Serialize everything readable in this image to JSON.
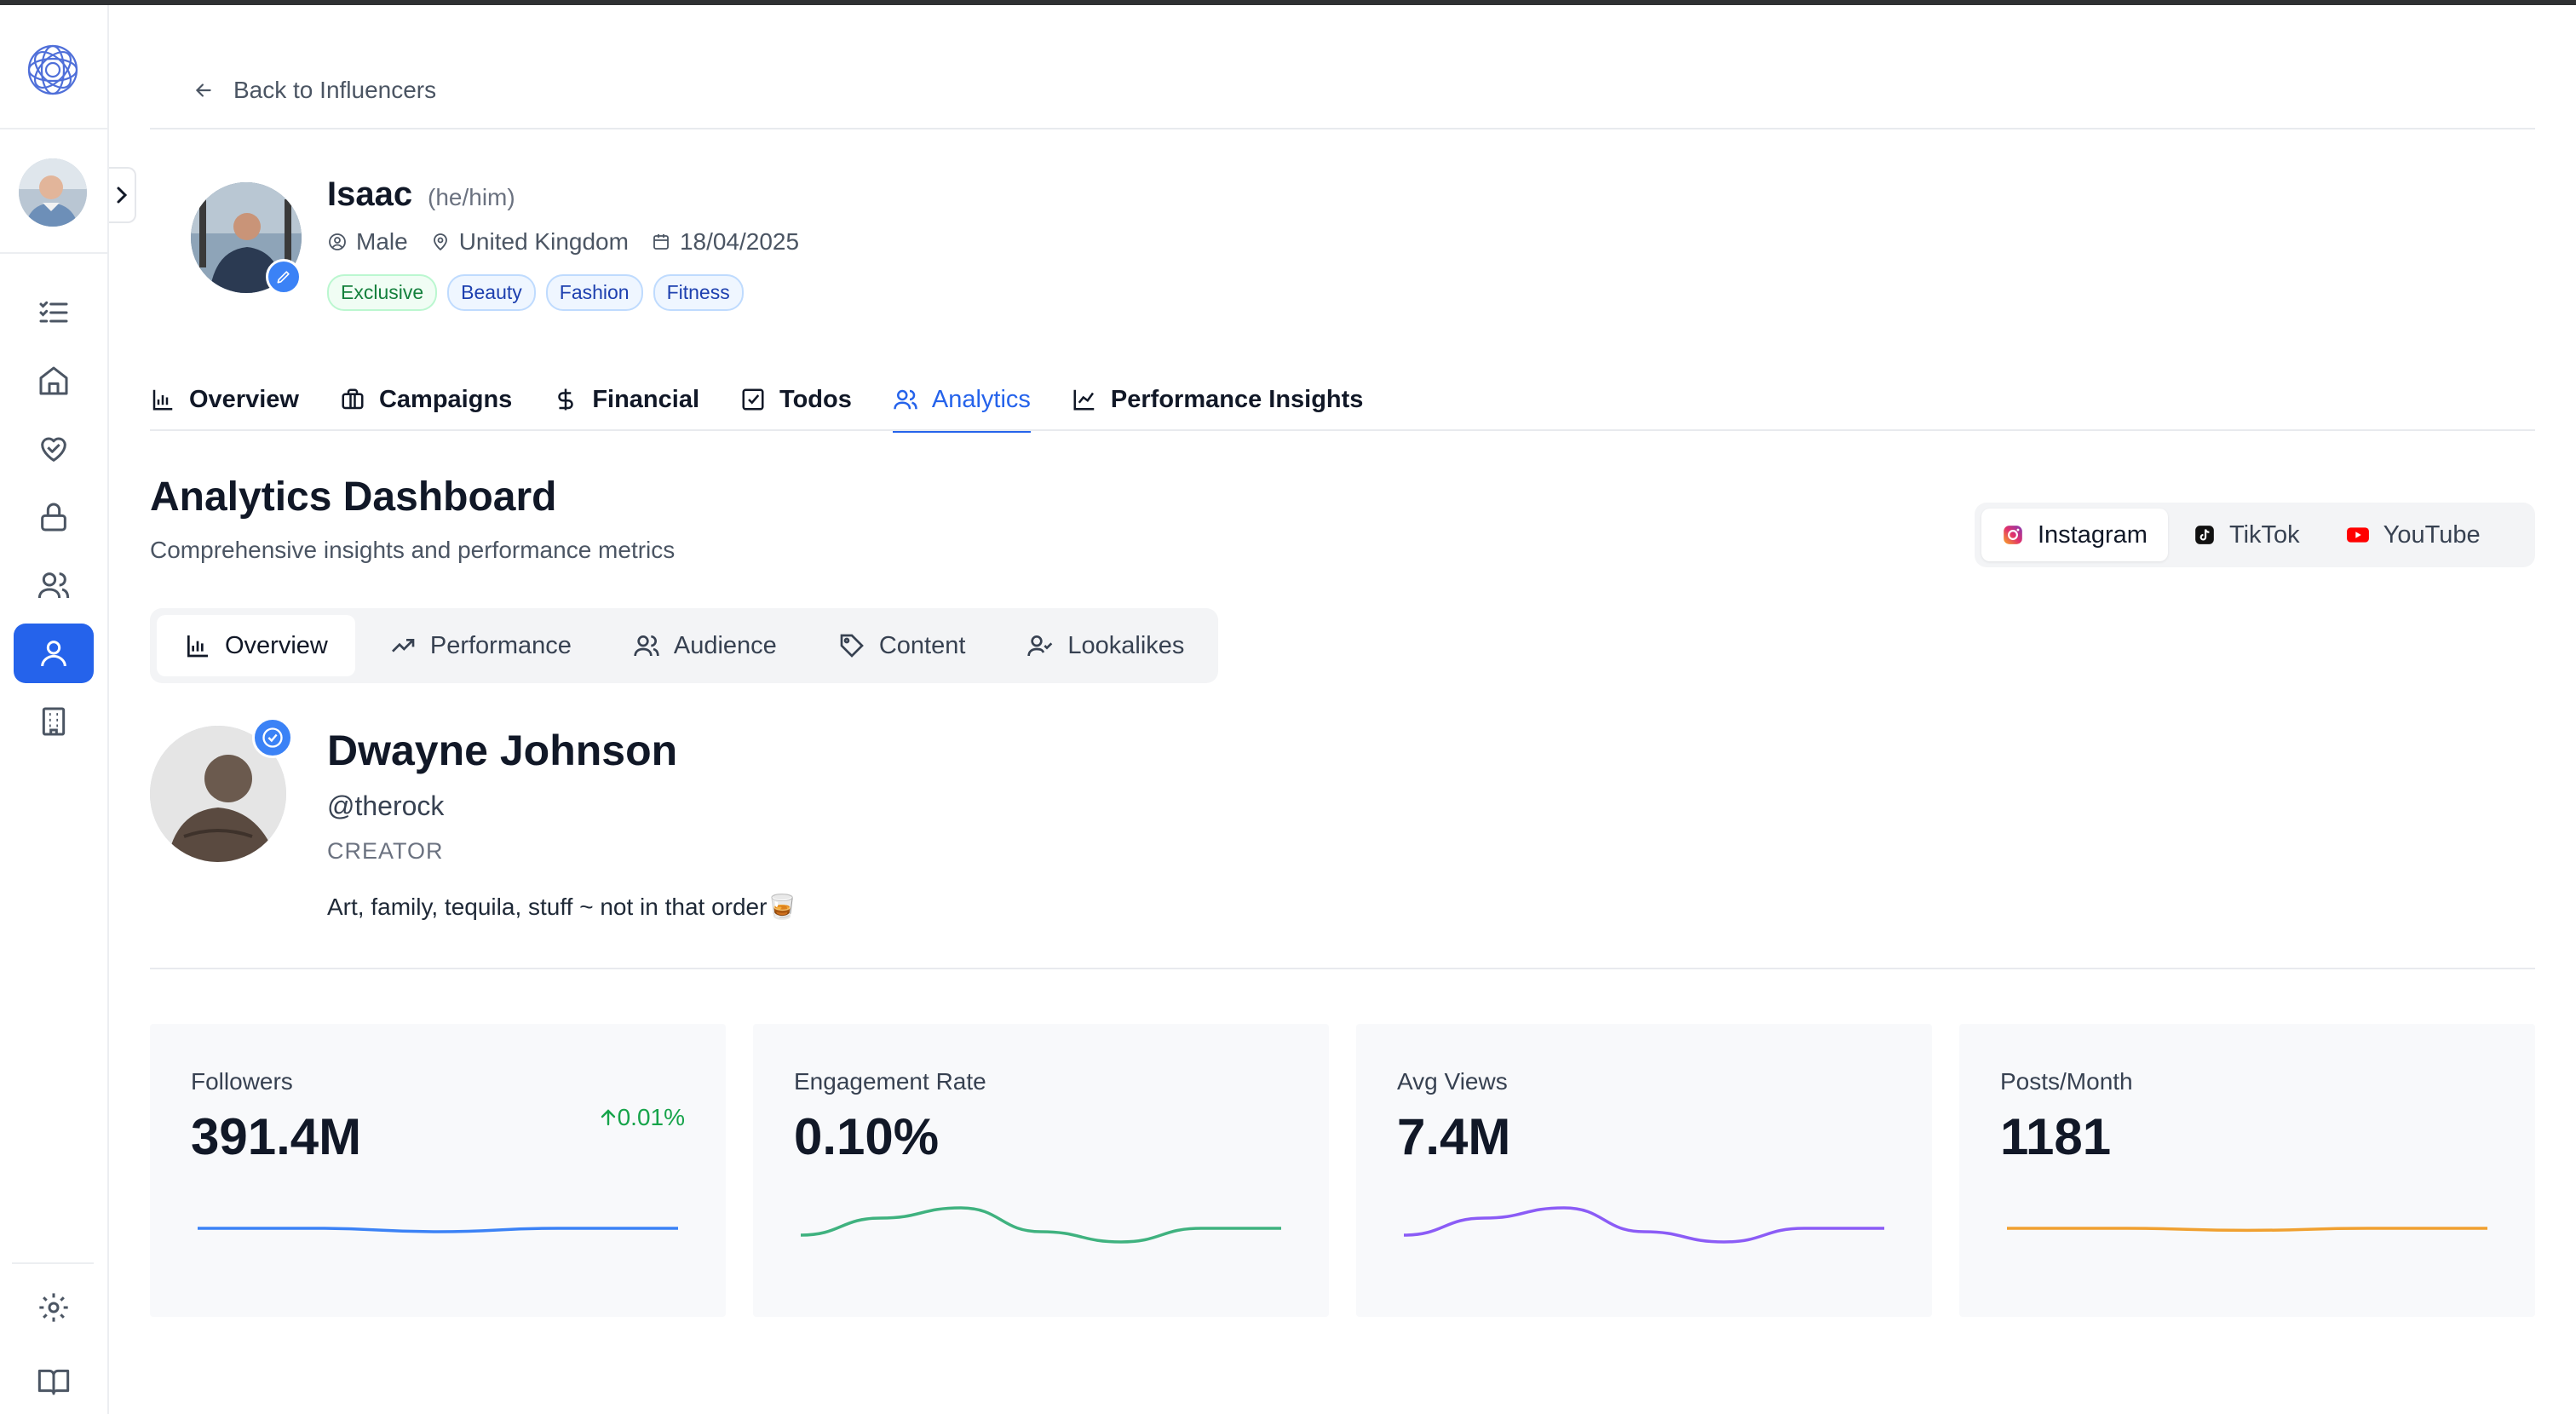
{
  "nav": {
    "back_label": "Back to Influencers"
  },
  "profile": {
    "name": "Isaac",
    "pronouns": "(he/him)",
    "gender": "Male",
    "location": "United Kingdom",
    "date": "18/04/2025",
    "tags": [
      "Exclusive",
      "Beauty",
      "Fashion",
      "Fitness"
    ]
  },
  "tabs": [
    {
      "label": "Overview",
      "icon": "bar-chart-icon"
    },
    {
      "label": "Campaigns",
      "icon": "briefcase-icon"
    },
    {
      "label": "Financial",
      "icon": "dollar-icon"
    },
    {
      "label": "Todos",
      "icon": "check-square-icon"
    },
    {
      "label": "Analytics",
      "icon": "users-icon",
      "active": true
    },
    {
      "label": "Performance Insights",
      "icon": "line-chart-icon"
    }
  ],
  "dashboard": {
    "title": "Analytics Dashboard",
    "subtitle": "Comprehensive insights and performance metrics"
  },
  "platforms": [
    {
      "label": "Instagram",
      "icon": "instagram-icon",
      "active": true
    },
    {
      "label": "TikTok",
      "icon": "tiktok-icon"
    },
    {
      "label": "YouTube",
      "icon": "youtube-icon"
    }
  ],
  "subtabs": [
    {
      "label": "Overview",
      "icon": "bar-chart-icon",
      "active": true
    },
    {
      "label": "Performance",
      "icon": "trending-up-icon"
    },
    {
      "label": "Audience",
      "icon": "users-icon"
    },
    {
      "label": "Content",
      "icon": "tag-icon"
    },
    {
      "label": "Lookalikes",
      "icon": "user-check-icon"
    }
  ],
  "creator": {
    "name": "Dwayne Johnson",
    "handle": "@therock",
    "role": "CREATOR",
    "bio": "Art, family, tequila, stuff ~ not in that order🥃"
  },
  "stats": [
    {
      "label": "Followers",
      "value": "391.4M",
      "change": "0.01%",
      "color": "#3b82f6",
      "trend": [
        0.5,
        0.5,
        0.45,
        0.5,
        0.5
      ]
    },
    {
      "label": "Engagement Rate",
      "value": "0.10%",
      "color": "#3fb27f",
      "trend": [
        0.4,
        0.65,
        0.8,
        0.45,
        0.3,
        0.5,
        0.5
      ]
    },
    {
      "label": "Avg Views",
      "value": "7.4M",
      "color": "#8b5cf6",
      "trend": [
        0.4,
        0.65,
        0.8,
        0.45,
        0.3,
        0.5,
        0.5
      ]
    },
    {
      "label": "Posts/Month",
      "value": "1181",
      "color": "#f0a030",
      "trend": [
        0.5,
        0.5,
        0.47,
        0.5,
        0.5
      ]
    }
  ],
  "colors": {
    "accent": "#2563eb",
    "positive": "#16a34a"
  }
}
